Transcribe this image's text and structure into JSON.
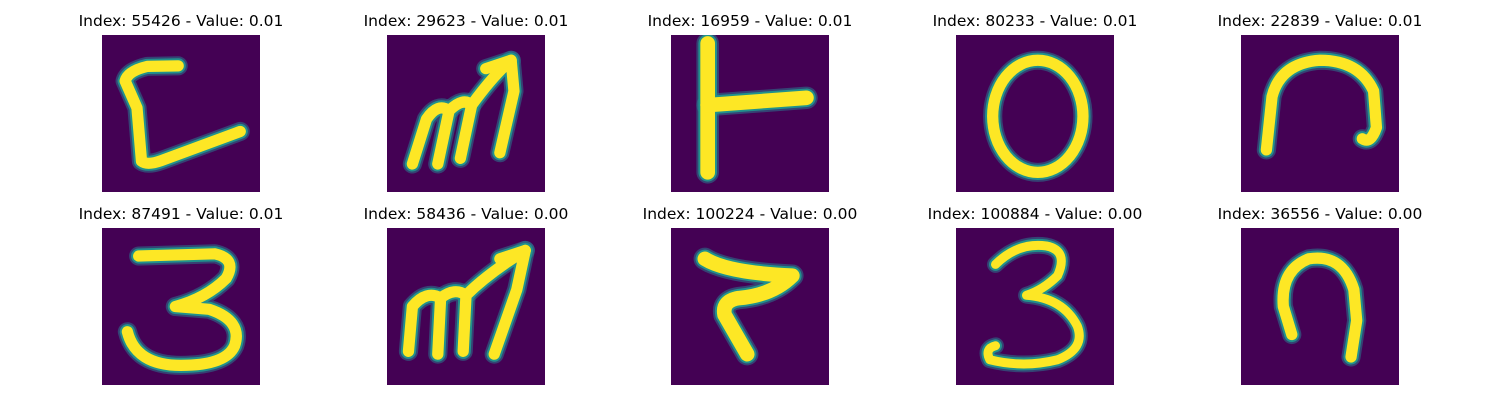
{
  "title_template": "Index: {index} - Value: {value}",
  "colors": {
    "background": "#440154",
    "glow": "#21918c",
    "stroke": "#fde725",
    "outer": "#2a788e"
  },
  "panels": [
    {
      "index": "55426",
      "value": "0.01",
      "title": "Index: 55426 - Value: 0.01",
      "glyph": "handwritten-c-like-stroke"
    },
    {
      "index": "29623",
      "value": "0.01",
      "title": "Index: 29623 - Value: 0.01",
      "glyph": "handwritten-m-with-arrow"
    },
    {
      "index": "16959",
      "value": "0.01",
      "title": "Index: 16959 - Value: 0.01",
      "glyph": "handwritten-t-rotated"
    },
    {
      "index": "80233",
      "value": "0.01",
      "title": "Index: 80233 - Value: 0.01",
      "glyph": "handwritten-o"
    },
    {
      "index": "22839",
      "value": "0.01",
      "title": "Index: 22839 - Value: 0.01",
      "glyph": "handwritten-n-arch"
    },
    {
      "index": "87491",
      "value": "0.01",
      "title": "Index: 87491 - Value: 0.01",
      "glyph": "handwritten-3"
    },
    {
      "index": "58436",
      "value": "0.00",
      "title": "Index: 58436 - Value: 0.00",
      "glyph": "handwritten-m-with-arrow"
    },
    {
      "index": "100224",
      "value": "0.00",
      "title": "Index: 100224 - Value: 0.00",
      "glyph": "handwritten-z-like-stroke"
    },
    {
      "index": "100884",
      "value": "0.00",
      "title": "Index: 100884 - Value: 0.00",
      "glyph": "handwritten-3"
    },
    {
      "index": "36556",
      "value": "0.00",
      "title": "Index: 36556 - Value: 0.00",
      "glyph": "handwritten-n-arch"
    }
  ]
}
